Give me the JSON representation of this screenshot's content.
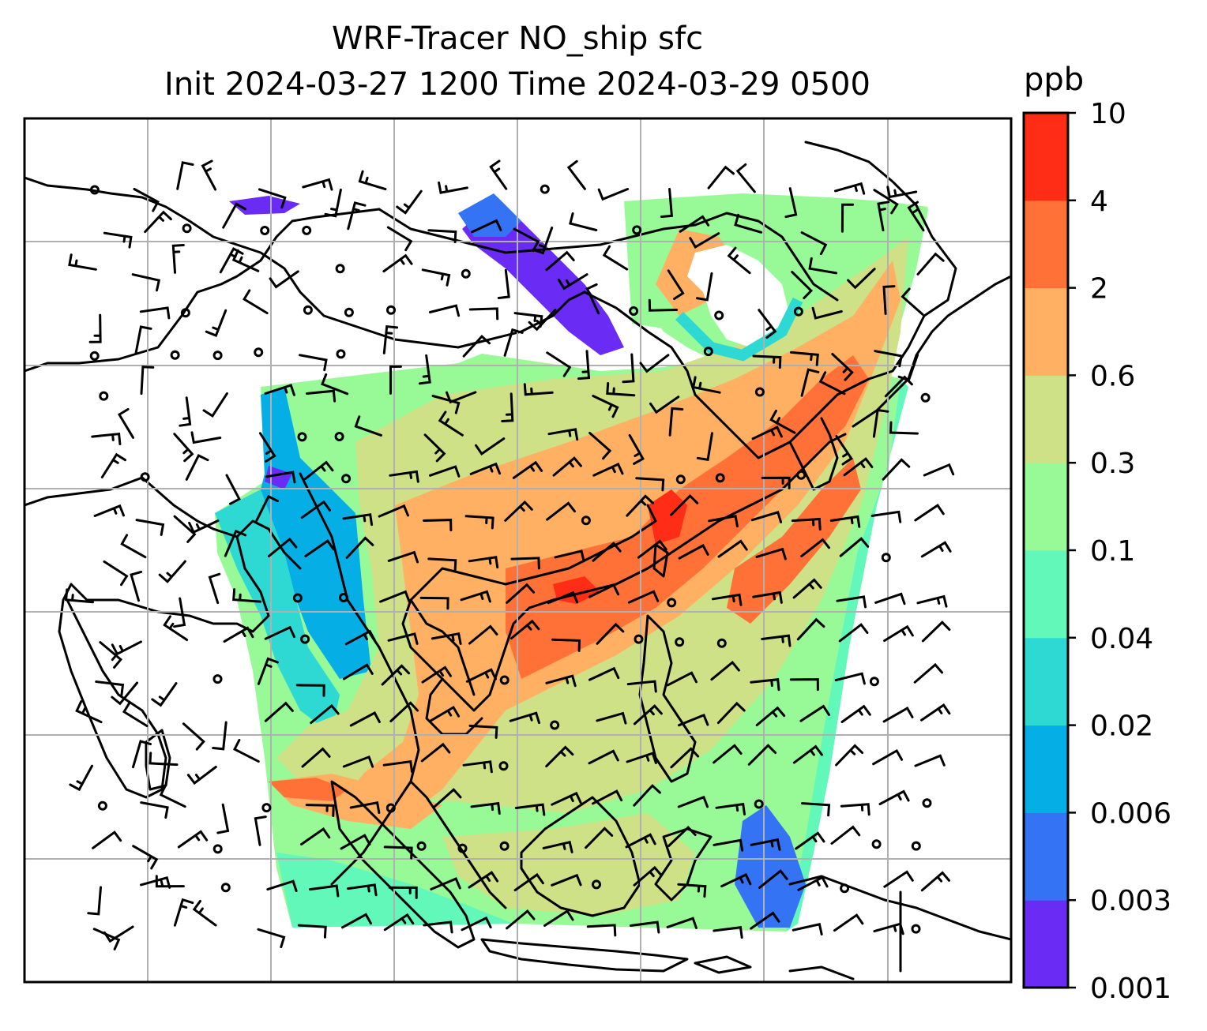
{
  "title": {
    "line1": "WRF-Tracer NO_ship sfc",
    "line2": "Init 2024-03-27 1200 Time 2024-03-29 0500"
  },
  "colorbar": {
    "unit": "ppb",
    "ticks": [
      "0.001",
      "0.003",
      "0.006",
      "0.02",
      "0.04",
      "0.1",
      "0.3",
      "0.6",
      "2",
      "4",
      "10"
    ],
    "colors": [
      "#6a2cf5",
      "#3473f4",
      "#06aee6",
      "#2ed9d3",
      "#62f8b9",
      "#98f997",
      "#cee186",
      "#ffb062",
      "#ff7137",
      "#ff2c16"
    ]
  },
  "map": {
    "gridlines": true,
    "field": "NO_ship surface concentration",
    "wind_barbs": true
  }
}
